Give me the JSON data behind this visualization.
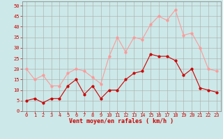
{
  "hours": [
    0,
    1,
    2,
    3,
    4,
    5,
    6,
    7,
    8,
    9,
    10,
    11,
    12,
    13,
    14,
    15,
    16,
    17,
    18,
    19,
    20,
    21,
    22,
    23
  ],
  "wind_avg": [
    5,
    6,
    4,
    6,
    6,
    12,
    15,
    8,
    12,
    6,
    10,
    10,
    15,
    18,
    19,
    27,
    26,
    26,
    24,
    17,
    20,
    11,
    10,
    9
  ],
  "wind_gust": [
    20,
    15,
    17,
    12,
    12,
    18,
    20,
    19,
    16,
    13,
    26,
    35,
    28,
    35,
    34,
    41,
    45,
    43,
    48,
    36,
    37,
    30,
    20,
    19
  ],
  "bg_color": "#cce8e8",
  "avg_color": "#cc0000",
  "gust_color": "#ff9999",
  "grid_color": "#aaaaaa",
  "xlabel": "Vent moyen/en rafales ( km/h )",
  "xlabel_color": "#cc0000",
  "ylabel_vals": [
    0,
    5,
    10,
    15,
    20,
    25,
    30,
    35,
    40,
    45,
    50
  ],
  "ylim": [
    0,
    52
  ],
  "xlim": [
    -0.5,
    23.5
  ],
  "tick_color": "#cc0000",
  "spine_color": "#888888",
  "tick_fontsize": 5.0,
  "xlabel_fontsize": 6.0,
  "marker_size": 2.0,
  "line_width": 0.8
}
